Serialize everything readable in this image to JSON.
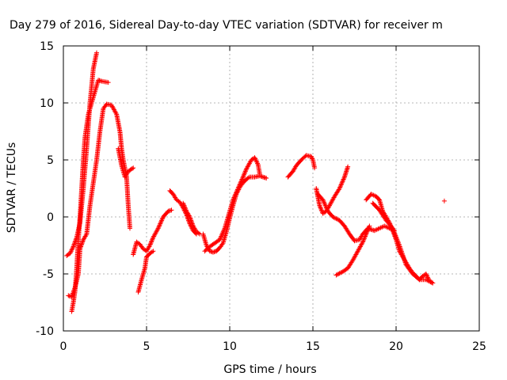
{
  "chart_data": {
    "type": "scatter",
    "title": "Day 279 of 2016, Sidereal Day-to-day VTEC variation (SDTVAR) for receiver m",
    "xlabel": "GPS time / hours",
    "ylabel": "SDTVAR / TECUs",
    "xlim": [
      0,
      25
    ],
    "ylim": [
      -10,
      15
    ],
    "xticks": [
      0,
      5,
      10,
      15,
      20,
      25
    ],
    "yticks": [
      -10,
      -5,
      0,
      5,
      10,
      15
    ],
    "grid": true,
    "marker": "+",
    "colors": {
      "series": "#ff0000",
      "grid": "#a0a0a0",
      "frame": "#000000"
    },
    "series": [
      {
        "segments": [
          [
            [
              0.2,
              -3.4
            ],
            [
              0.4,
              -3.2
            ],
            [
              0.6,
              -2.6
            ],
            [
              0.8,
              -1.8
            ],
            [
              1.0,
              -0.5
            ],
            [
              1.2,
              2.5
            ],
            [
              1.4,
              6.0
            ],
            [
              1.6,
              10.0
            ],
            [
              1.8,
              13.0
            ],
            [
              2.0,
              14.4
            ]
          ],
          [
            [
              0.5,
              -8.3
            ],
            [
              0.6,
              -7.5
            ],
            [
              0.7,
              -6.5
            ],
            [
              0.8,
              -4.5
            ],
            [
              0.9,
              -2.0
            ],
            [
              1.0,
              0.0
            ],
            [
              1.1,
              2.5
            ],
            [
              1.2,
              5.0
            ],
            [
              1.3,
              7.0
            ],
            [
              1.4,
              8.0
            ],
            [
              1.5,
              9.0
            ],
            [
              1.7,
              10.0
            ],
            [
              1.9,
              11.0
            ],
            [
              2.1,
              12.0
            ],
            [
              2.3,
              11.9
            ],
            [
              2.7,
              11.8
            ]
          ],
          [
            [
              0.3,
              -6.9
            ],
            [
              0.5,
              -7.0
            ],
            [
              0.7,
              -6.2
            ],
            [
              0.9,
              -5.0
            ],
            [
              1.0,
              -2.8
            ],
            [
              1.2,
              -2.0
            ],
            [
              1.4,
              -1.5
            ],
            [
              1.6,
              1.0
            ],
            [
              1.8,
              3.0
            ],
            [
              2.0,
              5.0
            ],
            [
              2.2,
              7.5
            ],
            [
              2.4,
              9.5
            ],
            [
              2.6,
              9.9
            ],
            [
              2.9,
              9.8
            ],
            [
              3.2,
              9.0
            ],
            [
              3.4,
              7.5
            ],
            [
              3.5,
              6.0
            ],
            [
              3.6,
              5.0
            ],
            [
              3.8,
              3.5
            ],
            [
              3.9,
              1.0
            ],
            [
              4.0,
              -1.0
            ]
          ],
          [
            [
              3.3,
              6.0
            ],
            [
              3.5,
              4.5
            ],
            [
              3.7,
              3.5
            ],
            [
              3.9,
              4.0
            ],
            [
              4.2,
              4.3
            ]
          ],
          [
            [
              4.2,
              -3.3
            ],
            [
              4.4,
              -2.2
            ],
            [
              4.6,
              -2.4
            ],
            [
              4.8,
              -2.8
            ],
            [
              5.0,
              -3.0
            ],
            [
              5.2,
              -2.5
            ],
            [
              5.4,
              -1.8
            ],
            [
              5.7,
              -1.0
            ],
            [
              6.0,
              0.0
            ],
            [
              6.3,
              0.5
            ],
            [
              6.5,
              0.6
            ]
          ],
          [
            [
              4.5,
              -6.6
            ],
            [
              4.7,
              -5.5
            ],
            [
              4.9,
              -4.5
            ],
            [
              5.0,
              -3.5
            ],
            [
              5.2,
              -3.2
            ],
            [
              5.4,
              -3.0
            ]
          ],
          [
            [
              6.4,
              2.3
            ],
            [
              6.6,
              2.0
            ],
            [
              6.8,
              1.5
            ],
            [
              7.0,
              1.3
            ],
            [
              7.2,
              0.8
            ],
            [
              7.4,
              0.2
            ],
            [
              7.6,
              -0.6
            ],
            [
              7.8,
              -1.2
            ],
            [
              8.0,
              -1.5
            ]
          ],
          [
            [
              7.2,
              1.2
            ],
            [
              7.4,
              0.5
            ],
            [
              7.6,
              0.0
            ],
            [
              7.8,
              -0.8
            ],
            [
              8.0,
              -1.3
            ],
            [
              8.2,
              -1.5
            ]
          ],
          [
            [
              8.4,
              -1.5
            ],
            [
              8.6,
              -2.5
            ],
            [
              8.8,
              -3.0
            ],
            [
              9.0,
              -3.1
            ],
            [
              9.2,
              -3.0
            ],
            [
              9.4,
              -2.7
            ],
            [
              9.6,
              -2.3
            ],
            [
              9.8,
              -1.3
            ],
            [
              10.0,
              -0.1
            ],
            [
              10.2,
              1.0
            ],
            [
              10.4,
              2.0
            ],
            [
              10.6,
              2.6
            ],
            [
              10.8,
              3.0
            ],
            [
              11.0,
              3.3
            ],
            [
              11.2,
              3.5
            ],
            [
              11.5,
              3.5
            ],
            [
              11.8,
              3.6
            ],
            [
              12.2,
              3.4
            ]
          ],
          [
            [
              8.5,
              -3.0
            ],
            [
              8.8,
              -2.6
            ],
            [
              9.1,
              -2.3
            ],
            [
              9.4,
              -2.0
            ],
            [
              9.7,
              -1.0
            ],
            [
              10.0,
              0.5
            ],
            [
              10.2,
              1.5
            ],
            [
              10.5,
              2.5
            ],
            [
              10.8,
              3.5
            ],
            [
              11.0,
              4.2
            ],
            [
              11.3,
              5.0
            ],
            [
              11.5,
              5.2
            ],
            [
              11.7,
              4.6
            ],
            [
              11.8,
              3.8
            ]
          ],
          [
            [
              13.5,
              3.5
            ],
            [
              13.8,
              4.0
            ],
            [
              14.0,
              4.5
            ],
            [
              14.3,
              5.0
            ],
            [
              14.6,
              5.4
            ],
            [
              14.9,
              5.3
            ],
            [
              15.0,
              5.0
            ],
            [
              15.1,
              4.3
            ]
          ],
          [
            [
              15.2,
              2.5
            ],
            [
              15.4,
              1.0
            ],
            [
              15.6,
              0.3
            ],
            [
              15.8,
              0.5
            ],
            [
              16.0,
              1.0
            ],
            [
              16.3,
              1.8
            ],
            [
              16.6,
              2.5
            ],
            [
              16.9,
              3.5
            ],
            [
              17.1,
              4.4
            ]
          ],
          [
            [
              15.3,
              2.0
            ],
            [
              15.6,
              1.5
            ],
            [
              15.9,
              0.5
            ],
            [
              16.2,
              0.0
            ],
            [
              16.6,
              -0.3
            ],
            [
              16.9,
              -0.8
            ],
            [
              17.2,
              -1.5
            ],
            [
              17.5,
              -2.1
            ],
            [
              17.8,
              -2.0
            ],
            [
              18.0,
              -1.5
            ],
            [
              18.3,
              -1.0
            ],
            [
              18.7,
              -1.2
            ],
            [
              19.0,
              -1.0
            ],
            [
              19.3,
              -0.8
            ],
            [
              19.6,
              -1.0
            ],
            [
              19.9,
              -1.2
            ]
          ],
          [
            [
              16.4,
              -5.1
            ],
            [
              16.8,
              -4.8
            ],
            [
              17.1,
              -4.5
            ],
            [
              17.4,
              -3.8
            ],
            [
              17.7,
              -3.0
            ],
            [
              18.0,
              -2.2
            ],
            [
              18.2,
              -1.5
            ],
            [
              18.4,
              -0.8
            ]
          ],
          [
            [
              18.2,
              1.5
            ],
            [
              18.5,
              2.0
            ],
            [
              18.8,
              1.8
            ],
            [
              19.0,
              1.5
            ],
            [
              19.2,
              0.5
            ],
            [
              19.4,
              0.0
            ],
            [
              19.6,
              -0.5
            ],
            [
              19.8,
              -1.2
            ],
            [
              20.0,
              -2.0
            ],
            [
              20.2,
              -3.0
            ],
            [
              20.4,
              -3.5
            ],
            [
              20.6,
              -4.0
            ],
            [
              20.8,
              -4.5
            ],
            [
              21.0,
              -4.9
            ],
            [
              21.2,
              -5.2
            ],
            [
              21.4,
              -5.5
            ],
            [
              21.6,
              -5.2
            ],
            [
              21.8,
              -5.0
            ],
            [
              22.0,
              -5.6
            ],
            [
              22.2,
              -5.8
            ]
          ],
          [
            [
              18.6,
              1.2
            ],
            [
              19.0,
              0.6
            ],
            [
              19.4,
              -0.3
            ],
            [
              19.8,
              -1.0
            ],
            [
              20.2,
              -2.5
            ],
            [
              20.6,
              -4.2
            ],
            [
              21.0,
              -5.0
            ],
            [
              21.4,
              -5.5
            ],
            [
              21.8,
              -5.5
            ],
            [
              22.2,
              -5.8
            ]
          ],
          [
            [
              22.9,
              1.4
            ]
          ]
        ]
      }
    ]
  }
}
